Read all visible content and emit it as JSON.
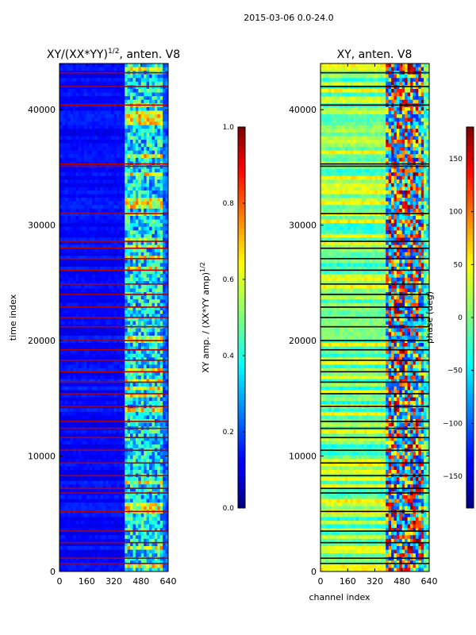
{
  "suptitle": "2015-03-06 0.0-24.0",
  "chart_data": [
    {
      "type": "heatmap",
      "title": "XY/(XX*YY)",
      "title_sup": "1/2",
      "title_suffix": ", anten. V8",
      "xlabel": "",
      "ylabel": "time index",
      "x_ticks": [
        "0",
        "160",
        "320",
        "480",
        "640"
      ],
      "x_tick_values": [
        0,
        160,
        320,
        480,
        640
      ],
      "y_ticks": [
        "0",
        "10000",
        "20000",
        "30000",
        "40000"
      ],
      "y_tick_values": [
        0,
        10000,
        20000,
        30000,
        40000
      ],
      "xlim": [
        0,
        640
      ],
      "ylim": [
        0,
        44000
      ],
      "colorbar": {
        "label": "XY amp. / (XX*YY amp)",
        "label_sup": "1/2",
        "ticks": [
          "0.0",
          "0.2",
          "0.4",
          "0.6",
          "0.8",
          "1.0"
        ],
        "tick_values": [
          0,
          0.2,
          0.4,
          0.6,
          0.8,
          1.0
        ],
        "range": [
          0,
          1
        ]
      },
      "flagged_rows": [
        700,
        1150,
        2500,
        3500,
        5200,
        6800,
        7200,
        8300,
        9400,
        10500,
        11600,
        12400,
        13000,
        14300,
        15400,
        16400,
        17300,
        18300,
        19200,
        20000,
        21200,
        22000,
        22900,
        24000,
        24900,
        26100,
        27100,
        28000,
        28600,
        31000,
        35100,
        35300,
        40400,
        42000,
        43200
      ]
    },
    {
      "type": "heatmap",
      "title": "XY, anten. V8",
      "xlabel": "channel index",
      "ylabel": "",
      "x_ticks": [
        "0",
        "160",
        "320",
        "480",
        "640"
      ],
      "x_tick_values": [
        0,
        160,
        320,
        480,
        640
      ],
      "y_ticks": [
        "0",
        "10000",
        "20000",
        "30000",
        "40000"
      ],
      "y_tick_values": [
        0,
        10000,
        20000,
        30000,
        40000
      ],
      "xlim": [
        0,
        640
      ],
      "ylim": [
        0,
        44000
      ],
      "colorbar": {
        "label": "phase (deg)",
        "ticks": [
          "−150",
          "−100",
          "−50",
          "0",
          "50",
          "100",
          "150"
        ],
        "tick_values": [
          -150,
          -100,
          -50,
          0,
          50,
          100,
          150
        ],
        "range": [
          -180,
          180
        ]
      },
      "flagged_rows": [
        700,
        1150,
        2500,
        3500,
        5200,
        6800,
        7200,
        8300,
        9400,
        10500,
        11600,
        12400,
        13000,
        14300,
        15400,
        16400,
        17300,
        18300,
        19200,
        20000,
        21200,
        22000,
        22900,
        24000,
        24900,
        26100,
        27100,
        28000,
        28600,
        31000,
        35100,
        35300,
        40400,
        42000,
        43200
      ]
    }
  ]
}
